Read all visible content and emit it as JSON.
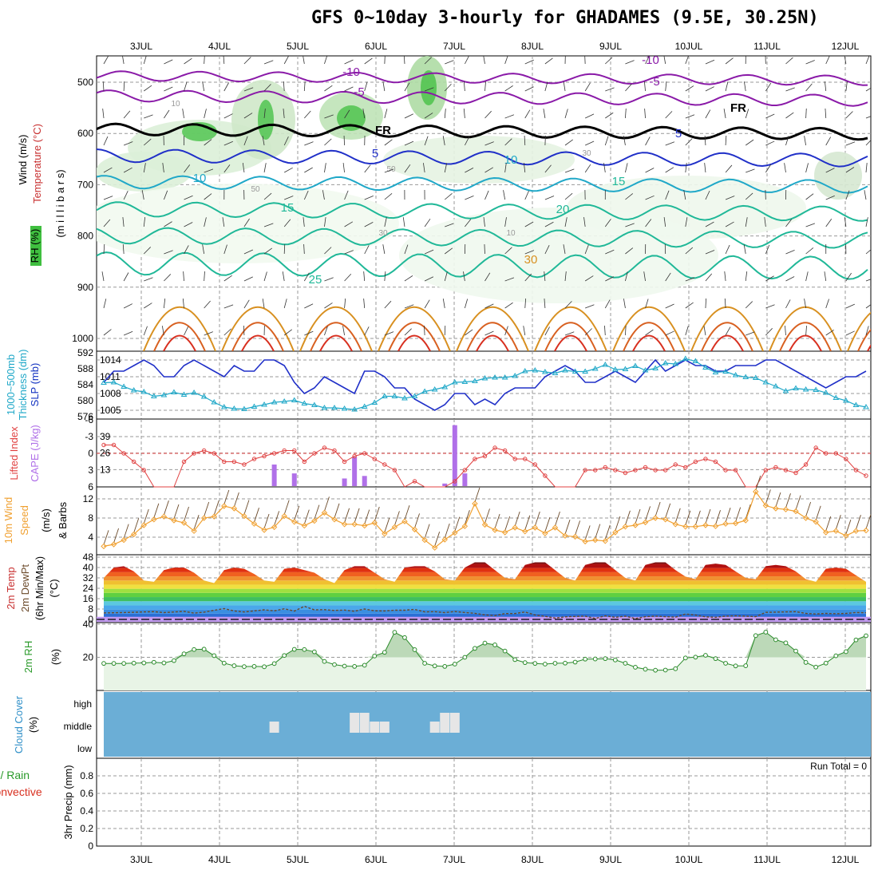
{
  "title": "GFS 0~10day 3-hourly for GHADAMES (9.5E, 30.25N)",
  "dates": [
    "3JUL",
    "4JUL",
    "5JUL",
    "6JUL",
    "7JUL",
    "8JUL",
    "9JUL",
    "10JUL",
    "11JUL",
    "12JUL"
  ],
  "colors": {
    "purple": "#8a1aa8",
    "blue_dark": "#2030c8",
    "blue": "#2a7ad8",
    "cyan": "#20a8c8",
    "teal": "#20b898",
    "orange": "#d89020",
    "red": "#d83020",
    "rh_green": "#3fbf3f",
    "cloud_blue": "#6baed6",
    "grid": "#999999"
  },
  "labels": {
    "p1_wind": "Wind (m/s)",
    "p1_temp": "Temperature (°C)",
    "p1_rh": "RH (%)",
    "p1_mb": "(m i l l i b a r s)",
    "p2_thick": "1000~500mb",
    "p2_thick2": "Thickness (dm)",
    "p2_slp": "SLP (mb)",
    "p3_li": "Lifted Index",
    "p3_cape": "CAPE (J/kg)",
    "p4_wind": "10m Wind",
    "p4_speed": "Speed",
    "p4_units": "(m/s)",
    "p4_barbs": "& Barbs",
    "p5_temp": "2m Temp",
    "p5_dewpt": "2m DewPt",
    "p5_minmax": "(6hr Min/Max)",
    "p5_units": "(°C)",
    "p6_rh": "2m RH",
    "p6_units": "(%)",
    "p7_cloud": "Cloud Cover",
    "p7_units": "(%)",
    "p7_high": "high",
    "p7_middle": "middle",
    "p7_low": "low",
    "p8_total": "Total / Rain",
    "p8_conv": "Convective",
    "p8_precip": "3hr Precip (mm)",
    "run_total": "Run Total = 0",
    "contour_fr": "FR"
  },
  "chart_data": [
    {
      "type": "heatmap",
      "name": "pressure-time cross section",
      "ylabel": "millibars",
      "ylim": [
        1000,
        450
      ],
      "y_ticks": [
        500,
        600,
        700,
        800,
        900,
        1000
      ],
      "contour_labels": [
        "-10",
        "-10",
        "-5",
        "-5",
        "FR",
        "FR",
        "5",
        "5",
        "10",
        "10",
        "15",
        "15",
        "20",
        "25",
        "30",
        "50",
        "50",
        "30",
        "30",
        "10",
        "10"
      ]
    },
    {
      "type": "line",
      "name": "thickness and SLP",
      "y_ticks_left": [
        576,
        580,
        584,
        588,
        592
      ],
      "y_ticks_right": [
        1005,
        1008,
        1011,
        1014
      ],
      "series": [
        {
          "values": [
            1010,
            1012,
            1012,
            1013,
            1014,
            1013,
            1011,
            1011,
            1013,
            1014,
            1013,
            1012,
            1011,
            1013,
            1012,
            1012,
            1014,
            1014,
            1013,
            1010,
            1008,
            1009,
            1011,
            1010,
            1009,
            1008,
            1012,
            1012,
            1011,
            1009,
            1009,
            1007,
            1006,
            1005,
            1006,
            1008,
            1008,
            1006,
            1007,
            1006,
            1008,
            1009,
            1009,
            1009,
            1011,
            1012,
            1013,
            1012,
            1010,
            1010,
            1011,
            1012,
            1011,
            1010,
            1012,
            1014,
            1012,
            1013,
            1014,
            1013,
            1013,
            1012,
            1012,
            1013,
            1013,
            1013,
            1014,
            1014,
            1013,
            1012,
            1011,
            1010,
            1009,
            1010,
            1011,
            1011,
            1012
          ]
        },
        {
          "values": [
            584.5,
            584.6,
            583.5,
            582.6,
            582.2,
            581.1,
            581.4,
            582.1,
            581.5,
            582.0,
            581.0,
            579.6,
            578.4,
            578.0,
            577.9,
            578.5,
            579.0,
            579.6,
            579.8,
            580.1,
            579.3,
            578.9,
            578.2,
            578.2,
            578.0,
            577.8,
            578.5,
            579.5,
            581.1,
            581.1,
            580.6,
            581.1,
            582.3,
            582.8,
            583.4,
            584.6,
            584.7,
            584.9,
            585.6,
            585.8,
            585.8,
            586.2,
            587.4,
            587.6,
            587.2,
            586.9,
            587.6,
            587.3,
            587.3,
            588.0,
            589.0,
            587.8,
            587.9,
            588.7,
            587.6,
            588.1,
            589.4,
            589.2,
            590.5,
            589.9,
            588.3,
            587.1,
            587.3,
            586.4,
            585.9,
            585.7,
            584.6,
            583.6,
            582.4,
            583.1,
            582.8,
            582.7,
            582.0,
            580.7,
            580.0,
            578.9,
            578.4
          ]
        }
      ]
    },
    {
      "type": "bar",
      "name": "lifted index and CAPE",
      "y_ticks_left": [
        "6",
        "3",
        "0",
        "-3",
        "-6"
      ],
      "y_ticks_right": [
        13,
        26,
        39
      ],
      "series": [
        {
          "values": [
            -1.5,
            -1.5,
            0,
            1.5,
            3,
            6,
            6,
            6,
            1.5,
            0,
            -0.5,
            0,
            1.5,
            1.5,
            2,
            1,
            0.5,
            0,
            -0.5,
            -0.5,
            1.5,
            0,
            -1,
            -0.5,
            1.5,
            0.5,
            0,
            1,
            2,
            3,
            6,
            5,
            6,
            6,
            6,
            5,
            3,
            1,
            0.5,
            -1,
            -0.5,
            1,
            1,
            2,
            4,
            6,
            6,
            6,
            3,
            3,
            2.5,
            3,
            3.5,
            3,
            2.5,
            3,
            3,
            2,
            2.5,
            1.5,
            1,
            1.5,
            3,
            3,
            6,
            6,
            3,
            2.5,
            3,
            3.5,
            2,
            -1,
            0,
            0,
            1,
            3,
            4
          ]
        },
        {
          "values": [
            0,
            0,
            0,
            0,
            0,
            0,
            0,
            0,
            0,
            0,
            0,
            0,
            0,
            0,
            0,
            0,
            0,
            17,
            0,
            10,
            0,
            0,
            0,
            0,
            6,
            23,
            8,
            0,
            0,
            0,
            0,
            0,
            0,
            0,
            2,
            48,
            10,
            0,
            0,
            0,
            0,
            0,
            0,
            0,
            0,
            0,
            0,
            0,
            0,
            0,
            0,
            0,
            0,
            0,
            0,
            0,
            0,
            0,
            0,
            0,
            0,
            0,
            0,
            0,
            0,
            0,
            0,
            0,
            0,
            0,
            0,
            0,
            0,
            0,
            0,
            0,
            0
          ]
        }
      ]
    },
    {
      "type": "line",
      "name": "10m wind speed",
      "y_ticks": [
        4,
        8,
        12
      ],
      "series": [
        {
          "values": [
            2.1,
            2.5,
            3.4,
            4.6,
            6.5,
            7.7,
            8.3,
            7.5,
            7.0,
            5.3,
            8.0,
            8.3,
            10.5,
            10.0,
            8.4,
            6.8,
            5.5,
            6.1,
            8.4,
            7.2,
            6.4,
            7.4,
            9.1,
            7.7,
            6.7,
            6.7,
            6.4,
            7.0,
            4.7,
            6.1,
            7.3,
            5.6,
            3.4,
            1.8,
            3.5,
            4.9,
            6.3,
            11.0,
            6.6,
            5.5,
            5.0,
            6.0,
            5.2,
            6.0,
            4.8,
            6.0,
            4.3,
            4.1,
            3.1,
            3.4,
            3.2,
            5.0,
            6.2,
            6.5,
            7.1,
            8.0,
            7.7,
            6.7,
            6.2,
            6.2,
            6.5,
            6.3,
            6.8,
            6.9,
            7.5,
            13.5,
            10.6,
            10.0,
            9.8,
            9.4,
            8.0,
            7.2,
            5.0,
            5.3,
            4.3,
            5.3,
            5.4
          ]
        }
      ]
    },
    {
      "type": "area",
      "name": "2m temperature and dewpoint",
      "y_ticks": [
        0,
        8,
        16,
        24,
        32,
        40,
        48
      ],
      "series": [
        {
          "values": [
            32,
            40,
            41,
            37,
            30,
            29,
            38,
            40,
            40,
            36,
            30,
            28,
            38,
            40,
            39,
            35,
            30,
            29,
            39,
            40,
            38,
            36,
            31,
            28,
            38,
            41,
            41,
            36,
            31,
            29,
            40,
            41,
            41,
            37,
            31,
            30,
            40,
            44,
            44,
            38,
            32,
            31,
            42,
            44,
            44,
            38,
            32,
            30,
            42,
            44,
            44,
            38,
            32,
            30,
            42,
            44,
            44,
            38,
            33,
            31,
            42,
            43,
            42,
            37,
            32,
            31,
            41,
            42,
            41,
            37,
            31,
            29,
            39,
            40,
            39,
            34,
            29
          ]
        },
        {
          "values": [
            5.0,
            5.1,
            5.3,
            5.5,
            5.8,
            6.0,
            5.2,
            5.7,
            6.2,
            4.8,
            5.6,
            7.0,
            8.3,
            6.5,
            5.7,
            6.6,
            7.4,
            6.6,
            8.2,
            6.4,
            10.1,
            7.3,
            7.5,
            6.9,
            7.2,
            6.3,
            8.0,
            6.6,
            6.5,
            7.1,
            7.1,
            7.7,
            5.8,
            6.0,
            5.2,
            6.1,
            5.3,
            4.7,
            3.5,
            2.9,
            4.5,
            4.5,
            5.7,
            3.4,
            2.4,
            1.0,
            2.0,
            2.3,
            2.5,
            0.7,
            2.8,
            1.6,
            2.5,
            0.6,
            2.1,
            2.5,
            2.1,
            1.7,
            4.2,
            3.3,
            2.0,
            1.6,
            2.5,
            2.8,
            2.5,
            2.1,
            5.4,
            5.6,
            5.8,
            6.0,
            4.6,
            4.1,
            4.6,
            4.3,
            4.6,
            5.3,
            5.1
          ]
        }
      ]
    },
    {
      "type": "area",
      "name": "2m relative humidity",
      "y_ticks": [
        20,
        40
      ],
      "series": [
        {
          "values": [
            16.3,
            16.3,
            16.3,
            16.5,
            16.6,
            17.0,
            16.6,
            18.0,
            22.1,
            24.7,
            24.9,
            21.0,
            16.5,
            14.9,
            14.4,
            14.5,
            14.3,
            16.2,
            21.1,
            24.8,
            24.7,
            23.3,
            17.5,
            15.6,
            14.7,
            14.5,
            15.2,
            20.8,
            23.0,
            35.1,
            31.9,
            24.6,
            16.4,
            14.8,
            14.5,
            15.9,
            20.0,
            25.4,
            28.6,
            27.5,
            23.8,
            18.6,
            16.8,
            16.3,
            15.9,
            16.4,
            16.5,
            17.1,
            18.9,
            19.0,
            19.2,
            18.4,
            16.4,
            14.0,
            12.8,
            12.2,
            12.3,
            13.1,
            19.6,
            20.1,
            21.2,
            19.2,
            16.4,
            14.8,
            14.9,
            33.1,
            35.2,
            30.6,
            28.7,
            23.8,
            16.9,
            14.1,
            16.5,
            20.9,
            23.4,
            30.5,
            33.0
          ]
        }
      ]
    },
    {
      "type": "bar",
      "name": "cloud cover",
      "values": [
        0,
        0,
        0,
        0,
        0,
        0,
        0,
        0,
        0,
        0,
        0,
        0,
        0,
        0,
        0,
        0,
        0,
        1,
        0,
        0,
        0,
        0,
        0,
        0,
        0,
        2,
        2,
        1,
        1,
        0,
        0,
        0,
        0,
        1,
        2,
        2,
        0,
        0,
        0,
        0,
        0,
        0,
        0,
        0,
        0,
        0,
        0,
        0,
        0,
        0,
        0,
        0,
        0,
        0,
        0,
        0,
        0,
        0,
        0,
        0,
        0,
        0,
        0,
        0,
        0,
        0,
        0,
        0,
        0,
        0,
        0,
        0,
        0,
        0,
        0,
        0,
        0
      ]
    },
    {
      "type": "bar",
      "name": "3hr precip",
      "ylim": [
        0,
        1
      ],
      "y_ticks": [
        "0",
        "0.2",
        "0.4",
        "0.6",
        "0.8"
      ],
      "values": [
        0,
        0,
        0,
        0,
        0,
        0,
        0,
        0,
        0,
        0,
        0,
        0,
        0,
        0,
        0,
        0,
        0,
        0,
        0,
        0,
        0,
        0,
        0,
        0,
        0,
        0,
        0,
        0,
        0,
        0,
        0,
        0,
        0,
        0,
        0,
        0,
        0,
        0,
        0,
        0,
        0,
        0,
        0,
        0,
        0,
        0,
        0,
        0,
        0,
        0,
        0,
        0,
        0,
        0,
        0,
        0,
        0,
        0,
        0,
        0,
        0,
        0,
        0,
        0,
        0,
        0,
        0,
        0,
        0,
        0,
        0,
        0,
        0,
        0,
        0,
        0,
        0
      ]
    }
  ]
}
